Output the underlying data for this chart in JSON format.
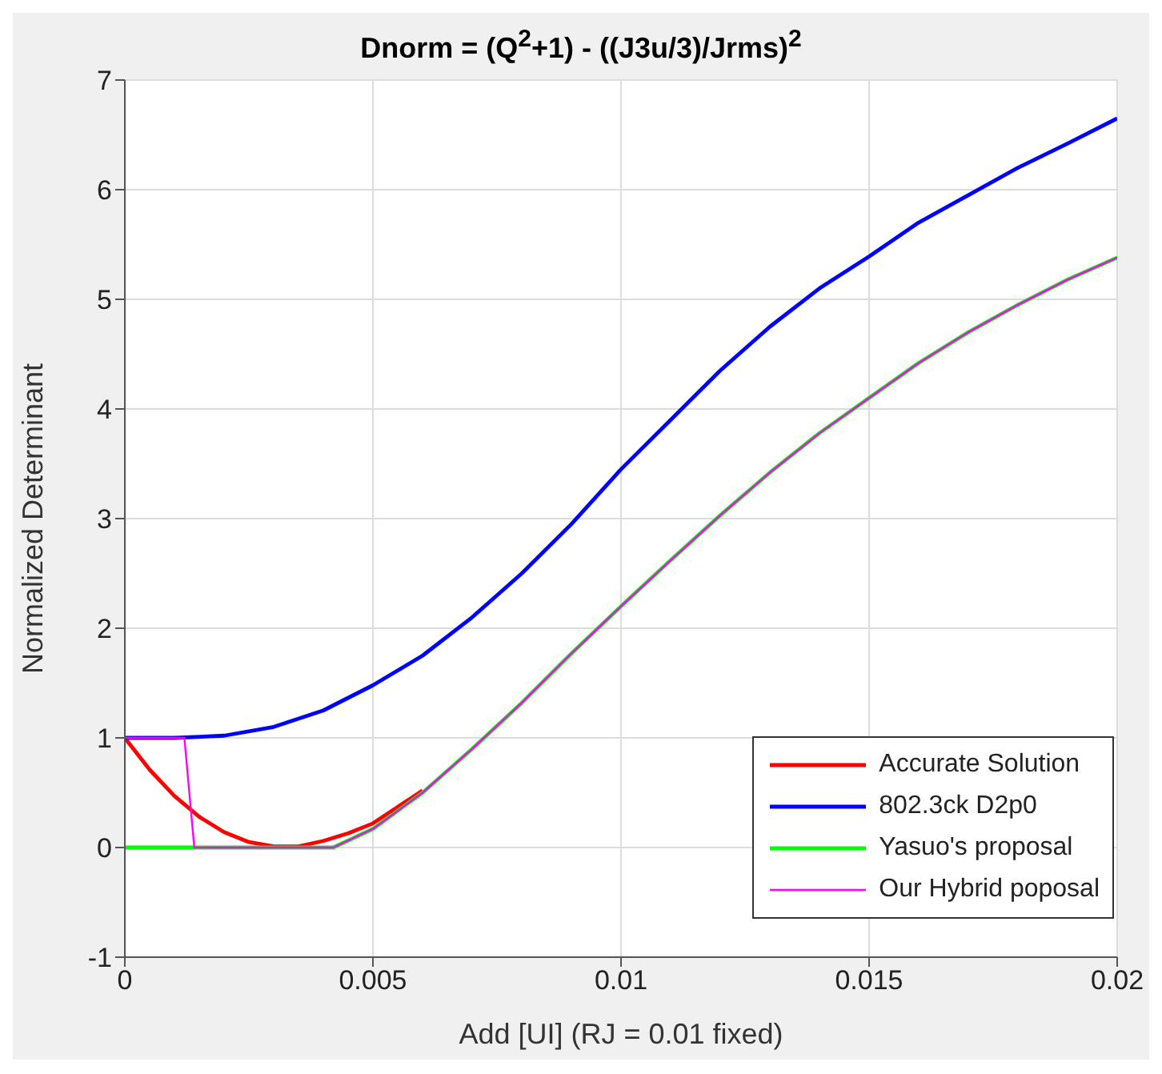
{
  "chart_data": {
    "type": "line",
    "title": "Dnorm = (Q$^{2}$+1) - ((J3u/3)/Jrms)$^{2}$",
    "xlabel": "Add [UI] (RJ = 0.01 fixed)",
    "ylabel": "Normalized Determinant",
    "xlim": [
      0,
      0.02
    ],
    "xticks": [
      0,
      0.005,
      0.01,
      0.015,
      0.02
    ],
    "ylim": [
      -1,
      7
    ],
    "yticks": [
      -1,
      0,
      1,
      2,
      3,
      4,
      5,
      6,
      7
    ],
    "grid": true,
    "legend": "bottom right",
    "marker": "none",
    "line_style": "solid",
    "series": [
      {
        "name": "Accurate Solution",
        "color": "#ff0000",
        "x": [
          0,
          0.0005,
          0.001,
          0.0015,
          0.002,
          0.0025,
          0.003,
          0.0035,
          0.004,
          0.0045,
          0.005,
          0.006
        ],
        "values": [
          1,
          0.71,
          0.47,
          0.28,
          0.14,
          0.05,
          0.01,
          0.01,
          0.06,
          0.13,
          0.22,
          0.52
        ]
      },
      {
        "name": "802.3ck D2p0",
        "color": "#0000ff",
        "x": [
          0,
          0.001,
          0.002,
          0.003,
          0.004,
          0.005,
          0.006,
          0.007,
          0.008,
          0.009,
          0.01,
          0.011,
          0.012,
          0.013,
          0.014,
          0.015,
          0.016,
          0.017,
          0.018,
          0.019,
          0.02
        ],
        "values": [
          1,
          1,
          1.02,
          1.1,
          1.25,
          1.48,
          1.75,
          2.1,
          2.5,
          2.95,
          3.45,
          3.9,
          4.35,
          4.75,
          5.1,
          5.39,
          5.7,
          5.95,
          6.2,
          6.42,
          6.65
        ]
      },
      {
        "name": "Yasuo's proposal",
        "color": "#00ff00",
        "x": [
          0,
          0.0014,
          0.0042,
          0.005,
          0.006,
          0.007,
          0.008,
          0.009,
          0.01,
          0.011,
          0.012,
          0.013,
          0.014,
          0.015,
          0.016,
          0.017,
          0.018,
          0.019,
          0.02
        ],
        "values": [
          0,
          0,
          0,
          0.17,
          0.5,
          0.9,
          1.32,
          1.77,
          2.2,
          2.62,
          3.03,
          3.42,
          3.78,
          4.1,
          4.42,
          4.7,
          4.95,
          5.18,
          5.38
        ]
      },
      {
        "name": "Our Hybrid poposal",
        "color": "#ff00ff",
        "x": [
          0,
          0.0012,
          0.0014,
          0.0042,
          0.005,
          0.006,
          0.007,
          0.008,
          0.009,
          0.01,
          0.011,
          0.012,
          0.013,
          0.014,
          0.015,
          0.016,
          0.017,
          0.018,
          0.019,
          0.02
        ],
        "values": [
          1,
          1,
          0,
          0,
          0.17,
          0.5,
          0.9,
          1.32,
          1.77,
          2.2,
          2.62,
          3.03,
          3.42,
          3.78,
          4.1,
          4.42,
          4.7,
          4.95,
          5.18,
          5.38
        ]
      }
    ]
  }
}
